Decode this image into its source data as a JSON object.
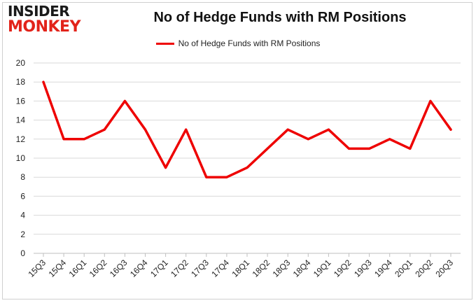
{
  "brand": {
    "logo_line1": "INSIDER",
    "logo_line2": "MONKEY"
  },
  "chart_data": {
    "type": "line",
    "title": "No of Hedge Funds with RM Positions",
    "xlabel": "",
    "ylabel": "",
    "categories": [
      "15Q3",
      "15Q4",
      "16Q1",
      "16Q2",
      "16Q3",
      "16Q4",
      "17Q1",
      "17Q2",
      "17Q3",
      "17Q4",
      "18Q1",
      "18Q2",
      "18Q3",
      "18Q4",
      "19Q1",
      "19Q2",
      "19Q3",
      "19Q4",
      "20Q1",
      "20Q2",
      "20Q3"
    ],
    "series": [
      {
        "name": "No of Hedge Funds with RM Positions",
        "values": [
          18,
          12,
          12,
          13,
          16,
          13,
          9,
          13,
          8,
          8,
          9,
          11,
          13,
          12,
          13,
          11,
          11,
          12,
          11,
          16,
          13
        ]
      }
    ],
    "ylim": [
      0,
      20
    ],
    "yticks": [
      0,
      2,
      4,
      6,
      8,
      10,
      12,
      14,
      16,
      18,
      20
    ],
    "grid": true,
    "legend_position": "top-center",
    "line_color": "#ee0000"
  }
}
